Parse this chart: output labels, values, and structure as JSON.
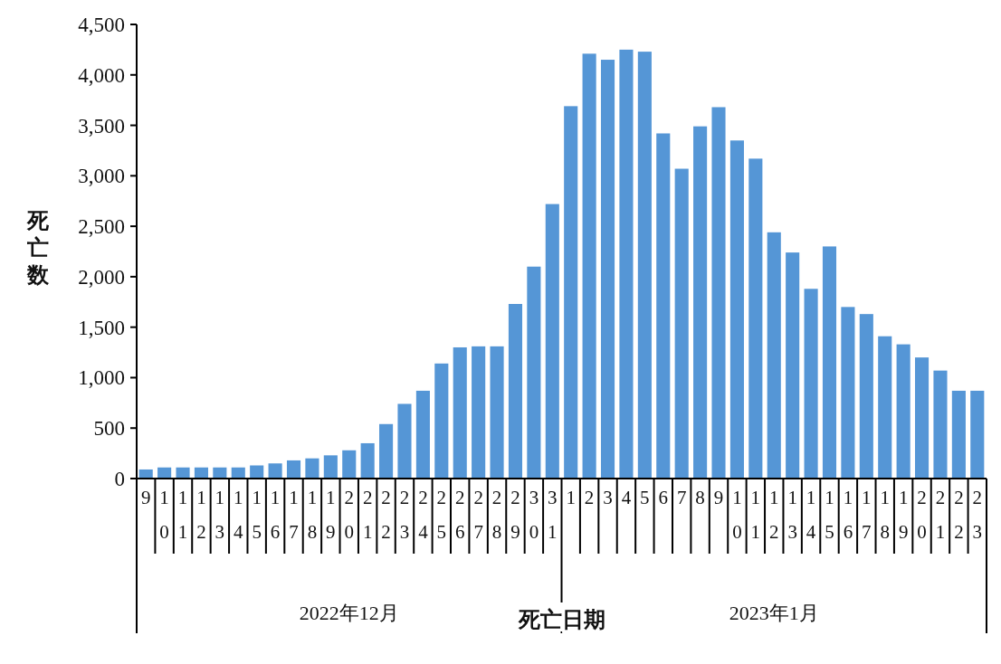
{
  "chart_data": {
    "type": "bar",
    "xlabel": "死亡日期",
    "ylabel": "死亡数",
    "categories": [
      "9",
      "10",
      "11",
      "12",
      "13",
      "14",
      "15",
      "16",
      "17",
      "18",
      "19",
      "20",
      "21",
      "22",
      "23",
      "24",
      "25",
      "26",
      "27",
      "28",
      "29",
      "30",
      "31",
      "1",
      "2",
      "3",
      "4",
      "5",
      "6",
      "7",
      "8",
      "9",
      "10",
      "11",
      "12",
      "13",
      "14",
      "15",
      "16",
      "17",
      "18",
      "19",
      "20",
      "21",
      "22",
      "23"
    ],
    "values": [
      90,
      110,
      110,
      110,
      110,
      110,
      130,
      150,
      180,
      200,
      230,
      280,
      350,
      540,
      740,
      870,
      1140,
      1300,
      1310,
      1310,
      1730,
      2100,
      2720,
      3690,
      4210,
      4150,
      4250,
      4230,
      3420,
      3070,
      3490,
      3680,
      3350,
      3170,
      2440,
      2240,
      1880,
      2300,
      1700,
      1630,
      1410,
      1330,
      1200,
      1070,
      870,
      870
    ],
    "color": "#5596d6",
    "ylim": [
      0,
      4500
    ],
    "yticks": [
      0,
      500,
      {
        "value": 1000,
        "label": "1,000"
      },
      {
        "value": 1500,
        "label": "1,500"
      },
      {
        "value": 2000,
        "label": "2,000"
      },
      {
        "value": 2500,
        "label": "2,500"
      },
      {
        "value": 3000,
        "label": "3,000"
      },
      {
        "value": 3500,
        "label": "3,500"
      },
      {
        "value": 4000,
        "label": "4,000"
      },
      {
        "value": 4500,
        "label": "4,500"
      }
    ],
    "annotations": [
      "2022年12月",
      "2023年1月"
    ]
  }
}
